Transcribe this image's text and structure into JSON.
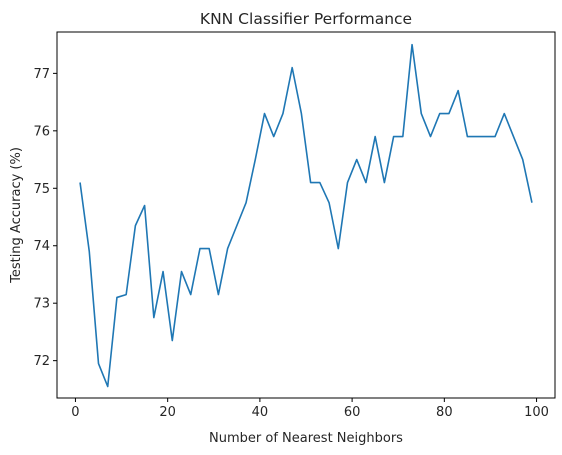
{
  "chart_data": {
    "type": "line",
    "title": "KNN Classifier Performance",
    "xlabel": "Number of Nearest Neighbors",
    "ylabel": "Testing Accuracy (%)",
    "xlim": [
      -4,
      104
    ],
    "ylim": [
      71.35,
      77.72
    ],
    "xticks": [
      0,
      20,
      40,
      60,
      80,
      100
    ],
    "yticks": [
      72,
      73,
      74,
      75,
      76,
      77
    ],
    "grid": false,
    "line_color": "#1f77b4",
    "series": [
      {
        "x": [
          1,
          3,
          5,
          7,
          9,
          11,
          13,
          15,
          17,
          19,
          21,
          23,
          25,
          27,
          29,
          31,
          33,
          35,
          37,
          39,
          41,
          43,
          45,
          47,
          49,
          51,
          53,
          55,
          57,
          59,
          61,
          63,
          65,
          67,
          69,
          71,
          73,
          75,
          77,
          79,
          81,
          83,
          85,
          87,
          89,
          91,
          93,
          95,
          97,
          99
        ],
        "values": [
          75.1,
          73.9,
          71.95,
          71.55,
          73.1,
          73.15,
          74.35,
          74.7,
          72.75,
          73.55,
          72.35,
          73.55,
          73.15,
          73.95,
          73.95,
          73.15,
          73.95,
          74.35,
          74.75,
          75.5,
          76.3,
          75.9,
          76.3,
          77.1,
          76.3,
          75.1,
          75.1,
          74.75,
          73.95,
          75.1,
          75.5,
          75.1,
          75.9,
          75.1,
          75.9,
          75.9,
          77.5,
          76.3,
          75.9,
          76.3,
          76.3,
          76.7,
          75.9,
          75.9,
          75.9,
          75.9,
          76.3,
          75.9,
          75.5,
          74.75
        ]
      }
    ]
  }
}
